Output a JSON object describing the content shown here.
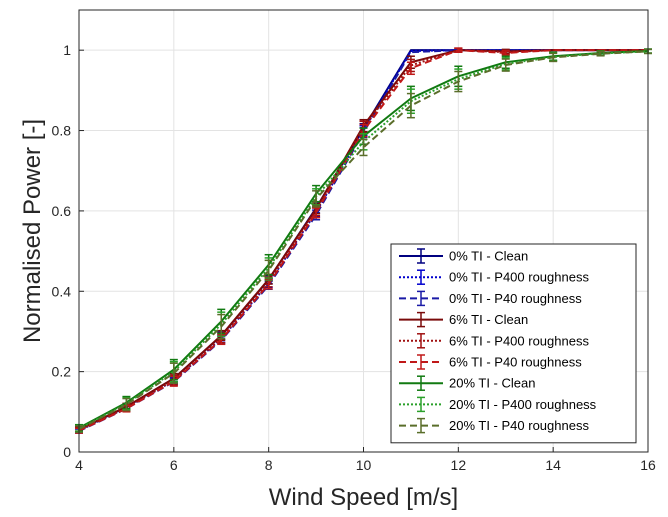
{
  "chart_data": {
    "type": "line",
    "title": "",
    "xlabel": "Wind Speed [m/s]",
    "ylabel": "Normalised Power [-]",
    "xlim": [
      4,
      16
    ],
    "ylim": [
      0,
      1.1
    ],
    "xticks": [
      4,
      6,
      8,
      10,
      12,
      14,
      16
    ],
    "yticks": [
      0,
      0.2,
      0.4,
      0.6,
      0.8,
      1
    ],
    "xtick_labels": [
      "4",
      "6",
      "8",
      "10",
      "12",
      "14",
      "16"
    ],
    "ytick_labels": [
      "0",
      "0.2",
      "0.4",
      "0.6",
      "0.8",
      "1"
    ],
    "grid": true,
    "legend_position": "lower-right",
    "series": [
      {
        "name": "0% TI - Clean",
        "color": "#000080",
        "dash": "solid",
        "x": [
          4,
          5,
          6,
          7,
          8,
          9,
          10,
          11,
          12,
          13,
          14,
          15,
          16
        ],
        "y": [
          0.055,
          0.112,
          0.183,
          0.289,
          0.429,
          0.607,
          0.805,
          1.0,
          1.0,
          1.0,
          1.0,
          1.0,
          1.0
        ],
        "err": [
          0.005,
          0.006,
          0.008,
          0.009,
          0.01,
          0.012,
          0.012,
          0,
          0,
          0,
          0,
          0,
          0
        ]
      },
      {
        "name": "0% TI - P400 roughness",
        "color": "#0000cd",
        "dash": "dotted",
        "x": [
          4,
          5,
          6,
          7,
          8,
          9,
          10,
          11,
          12,
          13,
          14,
          15,
          16
        ],
        "y": [
          0.053,
          0.11,
          0.178,
          0.282,
          0.42,
          0.597,
          0.8,
          0.998,
          1.0,
          1.0,
          1.0,
          1.0,
          1.0
        ],
        "err": [
          0.005,
          0.006,
          0.008,
          0.009,
          0.01,
          0.012,
          0.012,
          0,
          0,
          0,
          0,
          0,
          0
        ]
      },
      {
        "name": "0% TI - P40 roughness",
        "color": "#1a1aa6",
        "dash": "dashed",
        "x": [
          4,
          5,
          6,
          7,
          8,
          9,
          10,
          11,
          12,
          13,
          14,
          15,
          16
        ],
        "y": [
          0.052,
          0.108,
          0.175,
          0.278,
          0.415,
          0.59,
          0.795,
          0.995,
          1.0,
          1.0,
          1.0,
          1.0,
          1.0
        ],
        "err": [
          0.005,
          0.006,
          0.008,
          0.009,
          0.01,
          0.012,
          0.012,
          0,
          0,
          0,
          0,
          0,
          0
        ]
      },
      {
        "name": "6% TI - Clean",
        "color": "#7a0a0a",
        "dash": "solid",
        "x": [
          4,
          5,
          6,
          7,
          8,
          9,
          10,
          11,
          12,
          13,
          14,
          15,
          16
        ],
        "y": [
          0.056,
          0.113,
          0.183,
          0.29,
          0.43,
          0.605,
          0.812,
          0.97,
          1.0,
          0.997,
          1.0,
          1.0,
          1.0
        ],
        "err": [
          0.006,
          0.008,
          0.012,
          0.012,
          0.012,
          0.012,
          0.015,
          0.015,
          0.005,
          0.005,
          0,
          0,
          0
        ]
      },
      {
        "name": "6% TI - P400 roughness",
        "color": "#a01010",
        "dash": "dotted",
        "x": [
          4,
          5,
          6,
          7,
          8,
          9,
          10,
          11,
          12,
          13,
          14,
          15,
          16
        ],
        "y": [
          0.054,
          0.11,
          0.179,
          0.284,
          0.423,
          0.6,
          0.808,
          0.962,
          1.0,
          0.995,
          1.0,
          1.0,
          1.0
        ],
        "err": [
          0.006,
          0.008,
          0.012,
          0.012,
          0.012,
          0.012,
          0.015,
          0.015,
          0.005,
          0.005,
          0,
          0,
          0
        ]
      },
      {
        "name": "6% TI - P40 roughness",
        "color": "#c01818",
        "dash": "dashed",
        "x": [
          4,
          5,
          6,
          7,
          8,
          9,
          10,
          11,
          12,
          13,
          14,
          15,
          16
        ],
        "y": [
          0.053,
          0.108,
          0.176,
          0.28,
          0.418,
          0.595,
          0.8,
          0.955,
          1.0,
          0.993,
          1.0,
          1.0,
          1.0
        ],
        "err": [
          0.006,
          0.008,
          0.012,
          0.012,
          0.012,
          0.012,
          0.015,
          0.015,
          0.005,
          0.005,
          0,
          0,
          0
        ]
      },
      {
        "name": "20% TI - Clean",
        "color": "#117a11",
        "dash": "solid",
        "x": [
          4,
          5,
          6,
          7,
          8,
          9,
          10,
          11,
          12,
          13,
          14,
          15,
          16
        ],
        "y": [
          0.06,
          0.123,
          0.205,
          0.325,
          0.466,
          0.643,
          0.786,
          0.88,
          0.935,
          0.97,
          0.985,
          0.993,
          0.998
        ],
        "err": [
          0.008,
          0.015,
          0.025,
          0.03,
          0.025,
          0.02,
          0.02,
          0.03,
          0.025,
          0.015,
          0.01,
          0.005,
          0.005
        ]
      },
      {
        "name": "20% TI - P400 roughness",
        "color": "#2aa02a",
        "dash": "dotted",
        "x": [
          4,
          5,
          6,
          7,
          8,
          9,
          10,
          11,
          12,
          13,
          14,
          15,
          16
        ],
        "y": [
          0.058,
          0.12,
          0.2,
          0.318,
          0.458,
          0.635,
          0.772,
          0.873,
          0.928,
          0.966,
          0.983,
          0.992,
          0.997
        ],
        "err": [
          0.008,
          0.015,
          0.025,
          0.03,
          0.025,
          0.02,
          0.02,
          0.03,
          0.025,
          0.015,
          0.01,
          0.005,
          0.005
        ]
      },
      {
        "name": "20% TI - P40 roughness",
        "color": "#5a6e2a",
        "dash": "dashed",
        "x": [
          4,
          5,
          6,
          7,
          8,
          9,
          10,
          11,
          12,
          13,
          14,
          15,
          16
        ],
        "y": [
          0.057,
          0.118,
          0.196,
          0.312,
          0.452,
          0.63,
          0.758,
          0.862,
          0.922,
          0.963,
          0.982,
          0.991,
          0.997
        ],
        "err": [
          0.008,
          0.015,
          0.025,
          0.03,
          0.025,
          0.02,
          0.02,
          0.03,
          0.025,
          0.015,
          0.01,
          0.005,
          0.005
        ]
      }
    ]
  }
}
